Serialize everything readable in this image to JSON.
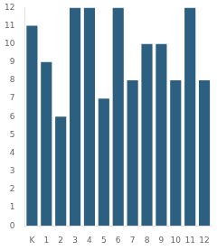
{
  "chart_data": {
    "type": "bar",
    "categories": [
      "K",
      "1",
      "2",
      "3",
      "4",
      "5",
      "6",
      "7",
      "8",
      "9",
      "10",
      "11",
      "12"
    ],
    "values": [
      11,
      9,
      6,
      12,
      12,
      7,
      12,
      8,
      10,
      10,
      8,
      12,
      8
    ],
    "color": "#2d6080",
    "ylim": [
      0,
      12
    ],
    "yticks": [
      0,
      1,
      2,
      3,
      4,
      5,
      6,
      7,
      8,
      9,
      10,
      11,
      12
    ],
    "grid": false
  }
}
